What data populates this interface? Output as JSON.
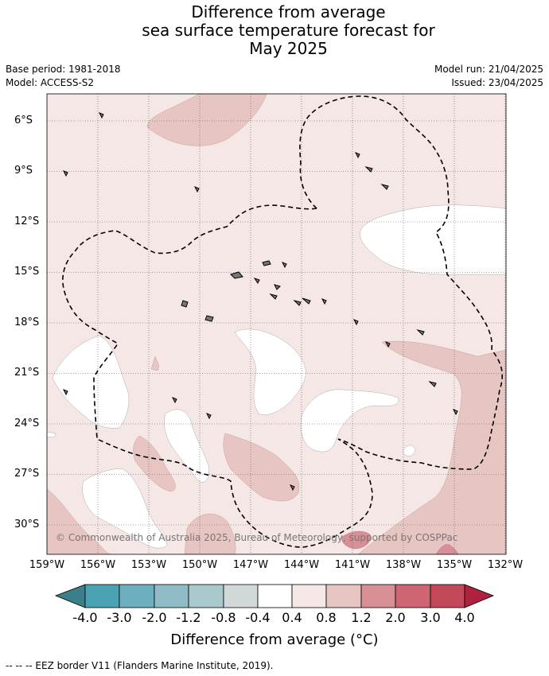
{
  "title": {
    "line1": "Difference from average",
    "line2": "sea surface temperature forecast for",
    "line3": "May 2025"
  },
  "meta": {
    "base_period": "Base period: 1981-2018",
    "model": "Model: ACCESS-S2",
    "model_run": "Model run: 21/04/2025",
    "issued": "Issued: 23/04/2025"
  },
  "map": {
    "lat_labels": [
      "6°S",
      "9°S",
      "12°S",
      "15°S",
      "18°S",
      "21°S",
      "24°S",
      "27°S",
      "30°S"
    ],
    "lon_labels": [
      "159°W",
      "156°W",
      "153°W",
      "150°W",
      "147°W",
      "144°W",
      "141°W",
      "138°W",
      "135°W",
      "132°W"
    ],
    "copyright": "© Commonwealth of Australia 2025, Bureau of Meteorology, supported by COSPPac"
  },
  "colorbar": {
    "labels": [
      "-4.0",
      "-3.0",
      "-2.0",
      "-1.2",
      "-0.8",
      "-0.4",
      "0.4",
      "0.8",
      "1.2",
      "2.0",
      "3.0",
      "4.0"
    ],
    "colors": [
      "#3b7f8b",
      "#4aa3b5",
      "#6eafbf",
      "#8fbcc6",
      "#aac9cd",
      "#d0d8d9",
      "#ffffff",
      "#f4e7e6",
      "#e7c5c2",
      "#d88f96",
      "#cd6572",
      "#c2495a",
      "#b0203f"
    ],
    "title": "Difference from average (°C)"
  },
  "footnote": "--  --  -- EEZ border V11 (Flanders Marine Institute, 2019)."
}
